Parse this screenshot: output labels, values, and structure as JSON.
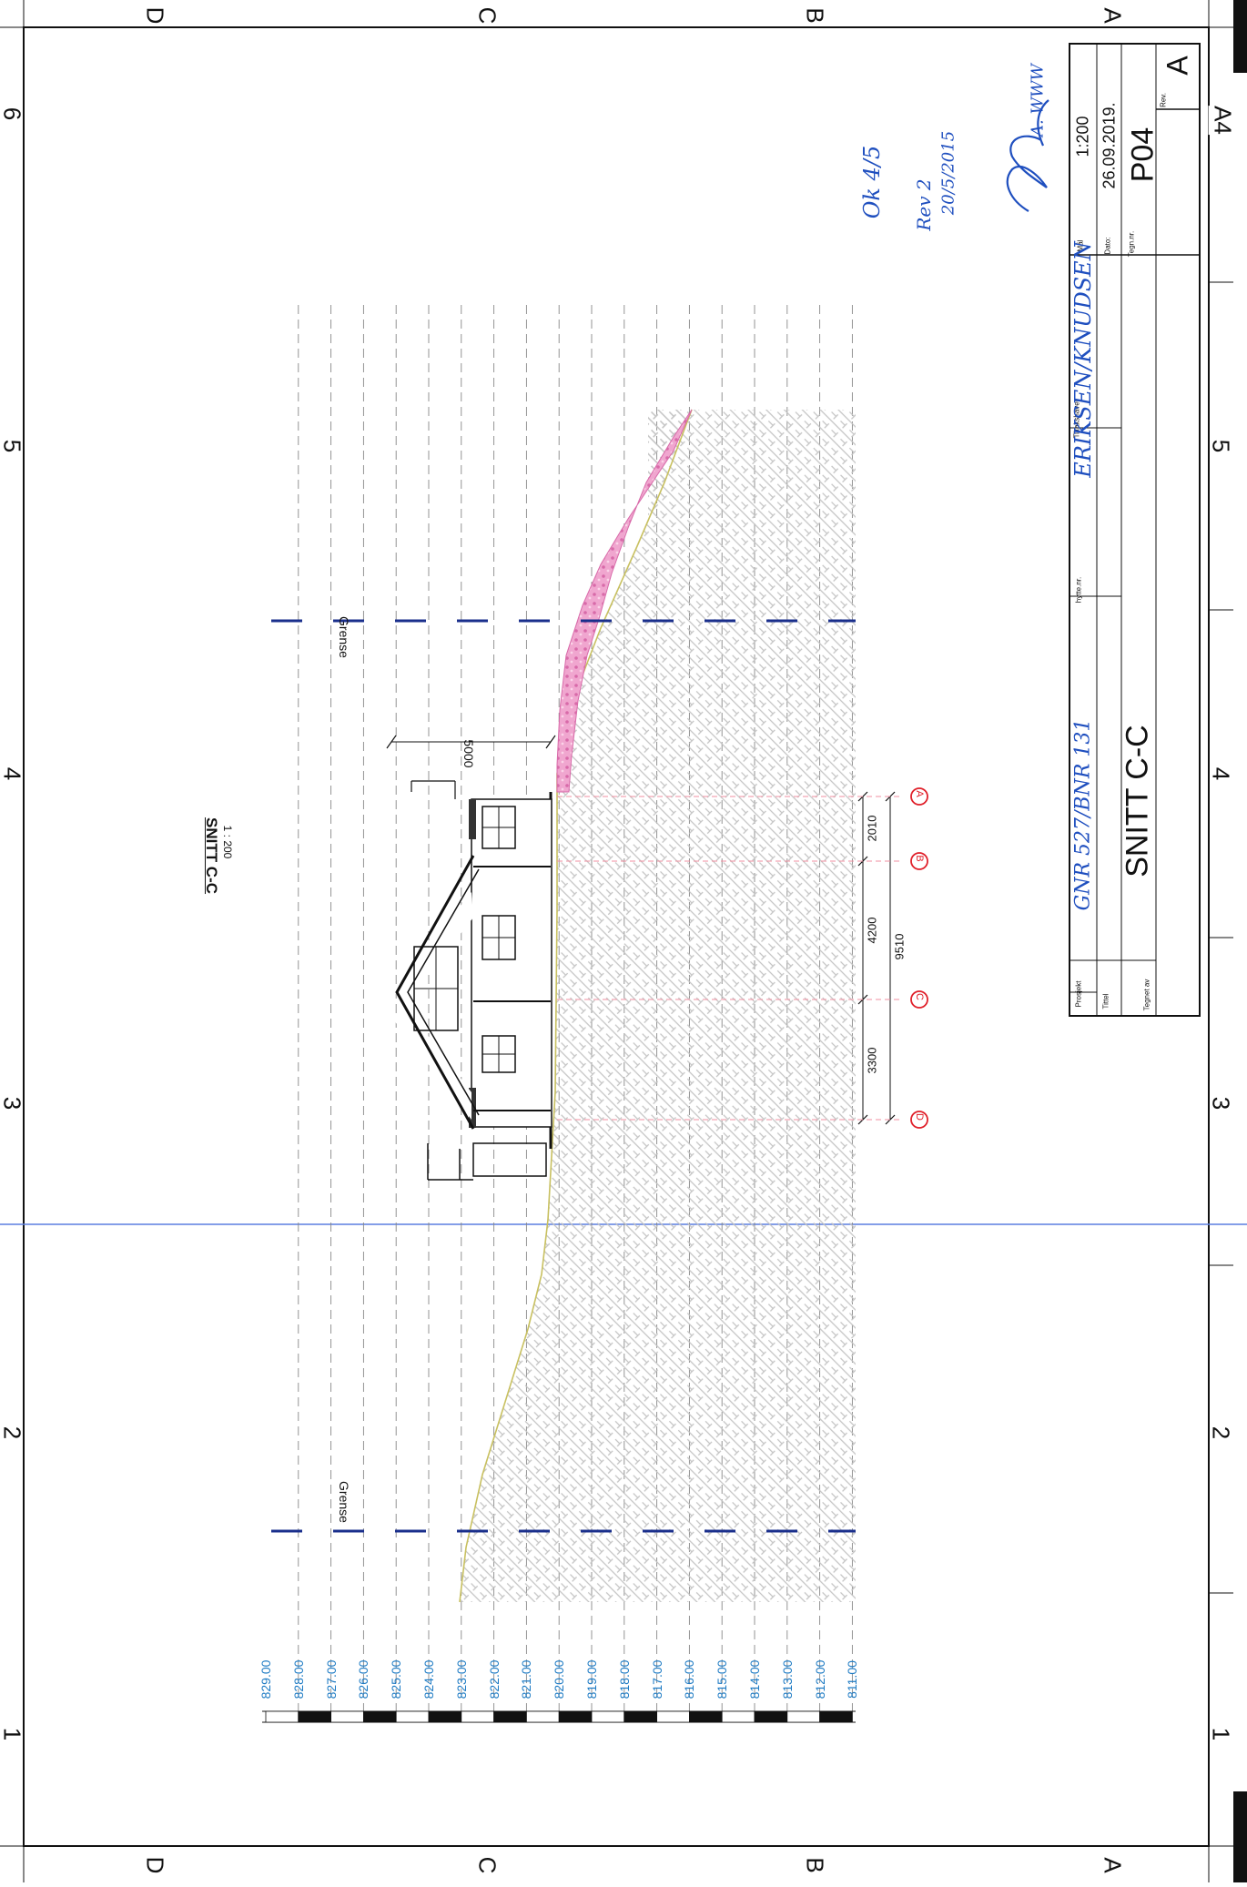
{
  "sheet": {
    "size_label": "A4",
    "row_letters": [
      "A",
      "B",
      "C",
      "D"
    ],
    "col_numbers": [
      "1",
      "2",
      "3",
      "4",
      "5",
      "6"
    ]
  },
  "drawing": {
    "title": "SNITT C-C",
    "scale": "1 : 200",
    "boundary_label": "Grense",
    "height_dimension": "5000",
    "axis_dims": [
      "3300",
      "4200",
      "2010"
    ],
    "axis_total": "9510",
    "axes": [
      "D",
      "C",
      "B",
      "A"
    ],
    "elevations": [
      "829.00",
      "828.00",
      "827.00",
      "826.00",
      "825.00",
      "824.00",
      "823.00",
      "822.00",
      "821.00",
      "820.00",
      "819.00",
      "818.00",
      "817.00",
      "816.00",
      "815.00",
      "814.00",
      "813.00",
      "812.00",
      "811.00"
    ]
  },
  "title_block": {
    "project_label": "Prosjekt",
    "title_label": "Tittel",
    "drawn_by_label": "Tegnet av",
    "cabin_no_label": "hytte.nr.",
    "builder_label": "Tiltakshaver",
    "scale_label": "Mål",
    "scale_value": "1:200",
    "date_label": "Dato:",
    "date_value": "26.09.2019.",
    "drawing_no_label": "Tegn.nr.",
    "drawing_no_value": "P04",
    "rev_label": "Rev.",
    "rev_value": "A",
    "title_value": "SNITT C-C"
  },
  "handwriting": {
    "project_note": "GNR 527/BNR 131",
    "builder_note": "ERIKSEN/KNUDSEN",
    "approval_note": "Ok 4/5",
    "revision_note": "Rev 2",
    "revision_date": "20/5/2015",
    "initials": "A. WWW"
  },
  "colors": {
    "line": "#111111",
    "elevation_text": "#1e7bc4",
    "boundary": "#1a2f8c",
    "axis_marker": "#e0202a",
    "fill_pink": "#e88cc0",
    "ground_line": "#c8c060",
    "hatch": "#bcbcbc",
    "pencil_line": "#5b7fe0"
  }
}
